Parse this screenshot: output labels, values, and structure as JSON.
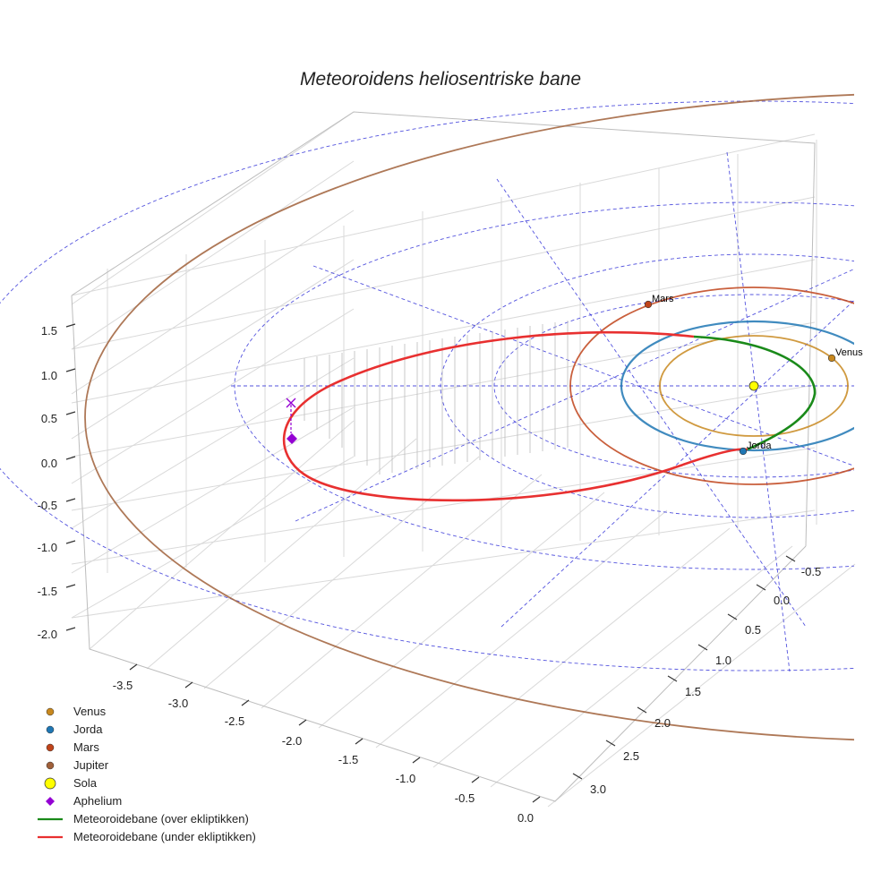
{
  "chart_data": {
    "type": "3d-line",
    "title": "Meteoroidens heliosentriske bane",
    "axes": {
      "x": {
        "ticks": [
          "-3.5",
          "-3.0",
          "-2.5",
          "-2.0",
          "-1.5",
          "-1.0",
          "-0.5",
          "0.0"
        ]
      },
      "y": {
        "ticks": [
          "-0.5",
          "0.0",
          "0.5",
          "1.0",
          "1.5",
          "2.0",
          "2.5",
          "3.0"
        ]
      },
      "z": {
        "ticks": [
          "1.5",
          "1.0",
          "0.5",
          "0.0",
          "-0.5",
          "-1.0",
          "-1.5",
          "-2.0"
        ]
      }
    },
    "bodies": [
      {
        "name": "Venus",
        "label": "Venus",
        "orbit_radius_au": 0.72,
        "color": "#c8881e"
      },
      {
        "name": "Jorda",
        "label": "Jorda",
        "orbit_radius_au": 1.0,
        "color": "#1f77b4"
      },
      {
        "name": "Mars",
        "label": "Mars",
        "orbit_radius_au": 1.52,
        "color": "#c0431a"
      },
      {
        "name": "Jupiter",
        "label": "",
        "orbit_radius_au": 5.2,
        "color": "#a0603a"
      }
    ],
    "sun": {
      "name": "Sola",
      "color": "#ffff00"
    },
    "aphelion": {
      "name": "Aphelium",
      "color": "#9400d3"
    },
    "meteoroid_orbit": {
      "aphelion_au": 3.4,
      "perihelion_au": 0.45,
      "segments": [
        {
          "name": "Meteoroidebane (over ekliptikken)",
          "color": "#1a8a1a"
        },
        {
          "name": "Meteoroidebane (under ekliptikken)",
          "color": "#e83030"
        }
      ]
    },
    "ecliptic_grid_color": "#3535d8",
    "legend": [
      {
        "label": "Venus",
        "marker": "dot",
        "color": "#c8881e"
      },
      {
        "label": "Jorda",
        "marker": "dot",
        "color": "#1f77b4"
      },
      {
        "label": "Mars",
        "marker": "dot",
        "color": "#c0431a"
      },
      {
        "label": "Jupiter",
        "marker": "dot",
        "color": "#a0603a"
      },
      {
        "label": "Sola",
        "marker": "sun",
        "color": "#ffff00"
      },
      {
        "label": "Aphelium",
        "marker": "diamond",
        "color": "#9400d3"
      },
      {
        "label": "Meteoroidebane (over ekliptikken)",
        "marker": "line",
        "color": "#1a8a1a"
      },
      {
        "label": "Meteoroidebane (under ekliptikken)",
        "marker": "line",
        "color": "#e83030"
      }
    ],
    "legend_position": "bottom-left"
  }
}
